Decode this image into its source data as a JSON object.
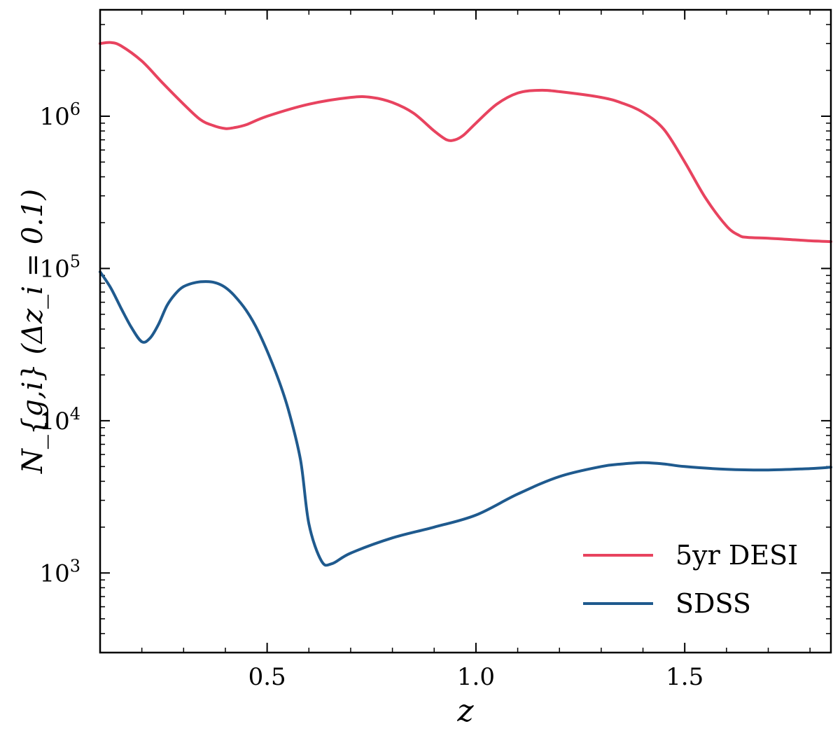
{
  "chart_data": {
    "type": "line",
    "title": "",
    "xlabel": "z",
    "ylabel": "N_{g,i} (Δz_i = 0.1)",
    "xlim": [
      0.1,
      1.85
    ],
    "ylim": [
      300,
      5000000
    ],
    "yscale": "log",
    "grid": false,
    "legend_position": "bottom-right",
    "x_ticks": [
      {
        "value": 0.5,
        "label": "0.5"
      },
      {
        "value": 1.0,
        "label": "1.0"
      },
      {
        "value": 1.5,
        "label": "1.5"
      }
    ],
    "y_ticks": [
      {
        "value": 1000,
        "base": "10",
        "exp": "3"
      },
      {
        "value": 10000,
        "base": "10",
        "exp": "4"
      },
      {
        "value": 100000,
        "base": "10",
        "exp": "5"
      },
      {
        "value": 1000000,
        "base": "10",
        "exp": "6"
      }
    ],
    "series": [
      {
        "name": "5yr DESI",
        "color": "#e8435f",
        "x": [
          0.1,
          0.125,
          0.15,
          0.2,
          0.25,
          0.3,
          0.34,
          0.37,
          0.4,
          0.42,
          0.45,
          0.5,
          0.6,
          0.7,
          0.75,
          0.8,
          0.85,
          0.9,
          0.93,
          0.95,
          0.97,
          1.0,
          1.05,
          1.1,
          1.15,
          1.2,
          1.3,
          1.35,
          1.4,
          1.45,
          1.5,
          1.55,
          1.6,
          1.63,
          1.65,
          1.7,
          1.75,
          1.8,
          1.85
        ],
        "y": [
          3000000,
          3050000,
          2900000,
          2300000,
          1650000,
          1200000,
          950000,
          870000,
          830000,
          840000,
          880000,
          1000000,
          1200000,
          1330000,
          1330000,
          1230000,
          1050000,
          800000,
          700000,
          700000,
          750000,
          900000,
          1200000,
          1420000,
          1480000,
          1450000,
          1330000,
          1220000,
          1060000,
          820000,
          500000,
          290000,
          190000,
          165000,
          160000,
          158000,
          155000,
          152000,
          150000
        ]
      },
      {
        "name": "SDSS",
        "color": "#1f5a8e",
        "x": [
          0.1,
          0.125,
          0.15,
          0.175,
          0.2,
          0.22,
          0.24,
          0.26,
          0.28,
          0.3,
          0.33,
          0.36,
          0.38,
          0.4,
          0.42,
          0.45,
          0.48,
          0.52,
          0.55,
          0.58,
          0.6,
          0.63,
          0.655,
          0.7,
          0.8,
          0.9,
          1.0,
          1.1,
          1.2,
          1.3,
          1.35,
          1.4,
          1.45,
          1.5,
          1.6,
          1.7,
          1.8,
          1.85
        ],
        "y": [
          95000,
          75000,
          55000,
          41000,
          33000,
          35000,
          43000,
          57000,
          68000,
          76000,
          81000,
          82000,
          80000,
          75000,
          67000,
          53000,
          38000,
          21000,
          12000,
          5500,
          2100,
          1200,
          1150,
          1350,
          1700,
          2000,
          2400,
          3300,
          4300,
          5000,
          5200,
          5300,
          5200,
          5000,
          4800,
          4750,
          4850,
          4950
        ]
      }
    ]
  }
}
